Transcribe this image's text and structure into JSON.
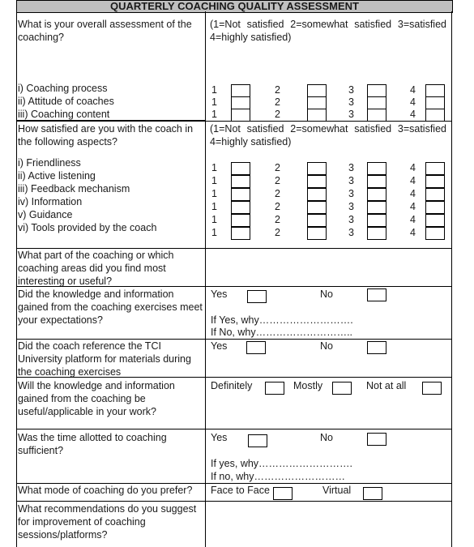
{
  "title": "QUARTERLY COACHING QUALITY ASSESSMENT",
  "scale_text": "(1=Not satisfied 2=somewhat satisfied 3=satisfied 4=highly satisfied)",
  "scale_numbers": [
    "1",
    "2",
    "3",
    "4"
  ],
  "section1": {
    "question": "What is your overall assessment of the coaching?",
    "items": [
      "i) Coaching process",
      "ii) Attitude of coaches",
      "iii) Coaching content"
    ]
  },
  "section2": {
    "question": "How satisfied are you with the coach in the following aspects?",
    "items": [
      "i) Friendliness",
      "ii) Active listening",
      "iii) Feedback mechanism",
      "iv) Information",
      "v) Guidance",
      "vi) Tools provided by the coach"
    ]
  },
  "q3": {
    "question": "What part of the coaching or which coaching areas did you find most interesting or useful?"
  },
  "q4": {
    "question": "Did the knowledge and information gained from the coaching exercises meet your expectations?",
    "yes": "Yes",
    "no": "No",
    "if_yes": "If Yes, why……………………….",
    "if_no": "If No, why……………………….."
  },
  "q5": {
    "question": "Did the coach reference the TCI University platform for materials during the coaching exercises",
    "yes": "Yes",
    "no": "No"
  },
  "q6": {
    "question": "Will the knowledge and information gained from the coaching be useful/applicable in your work?",
    "opt1": "Definitely",
    "opt2": "Mostly",
    "opt3": "Not at all"
  },
  "q7": {
    "question": "Was the time allotted to coaching sufficient?",
    "yes": "Yes",
    "no": "No",
    "if_yes": "If yes, why……………………….",
    "if_no": "If no, why………………………"
  },
  "q8": {
    "question": "What mode of coaching do you prefer?",
    "opt1": "Face to Face",
    "opt2": "Virtual"
  },
  "q9": {
    "question": "What recommendations do you suggest for improvement of coaching sessions/platforms?"
  }
}
